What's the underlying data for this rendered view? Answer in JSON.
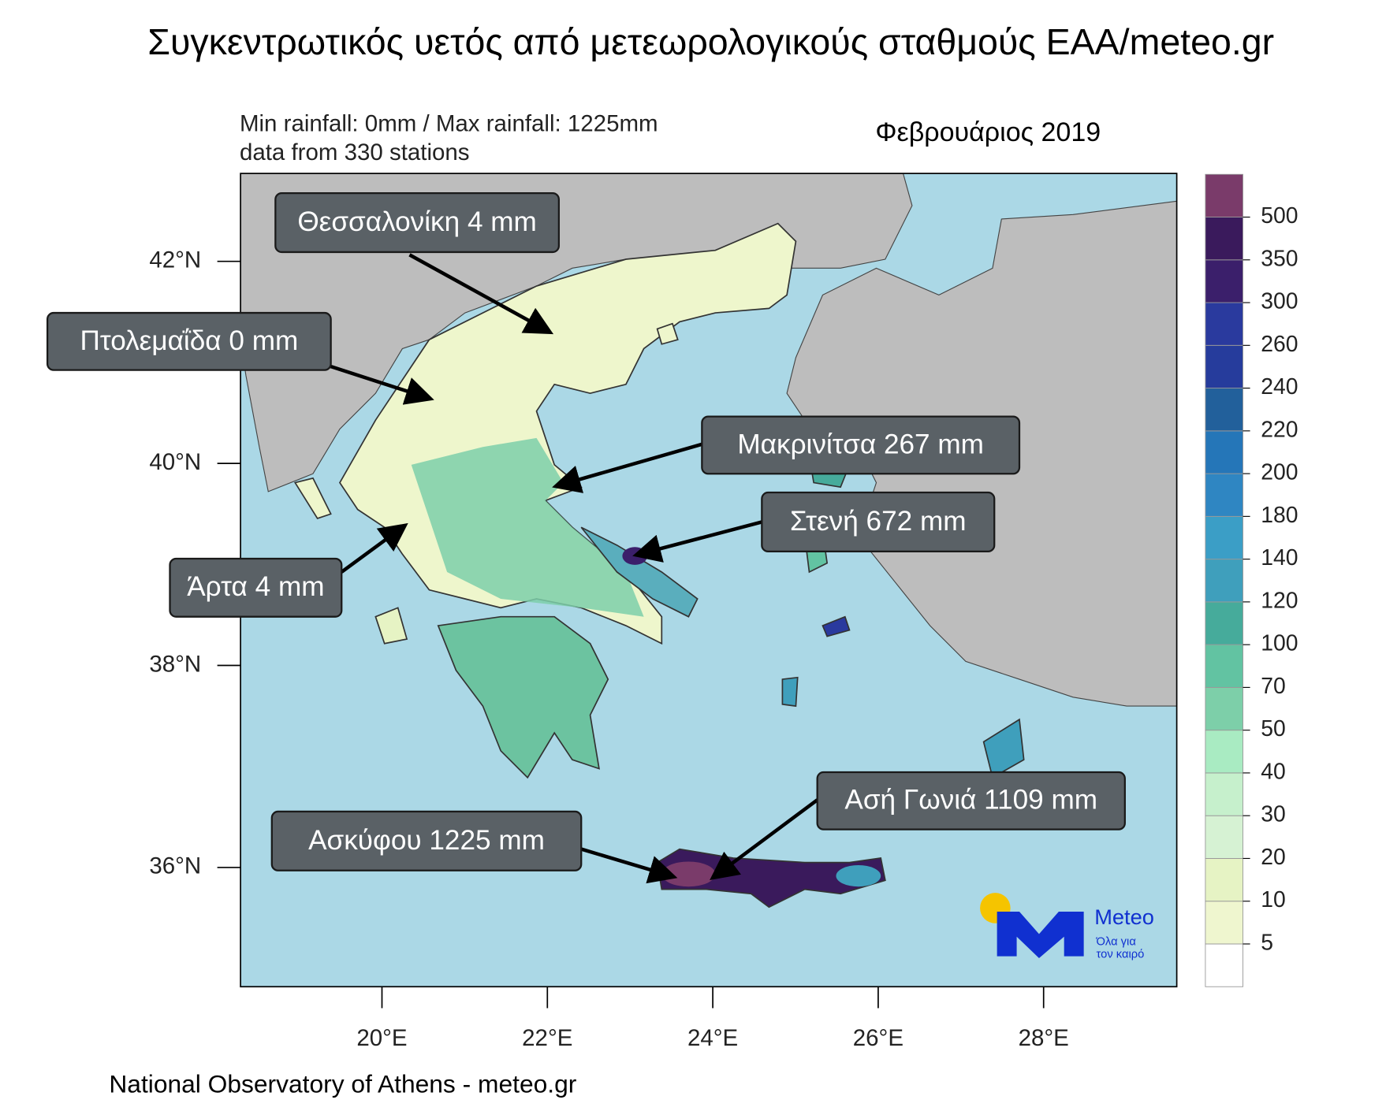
{
  "title": "Συγκεντρωτικός υετός από μετεωρολογικούς σταθμούς ΕΑΑ/meteo.gr",
  "map": {
    "info": [
      "Min rainfall: 0mm / Max rainfall: 1225mm",
      "data from 330 stations"
    ],
    "period": "Φεβρουάριος 2019",
    "xlim": [
      18.29,
      29.61
    ],
    "ylim": [
      34.82,
      42.87
    ],
    "xticks": [
      {
        "value": 20,
        "label": "20°E"
      },
      {
        "value": 22,
        "label": "22°E"
      },
      {
        "value": 24,
        "label": "24°E"
      },
      {
        "value": 26,
        "label": "26°E"
      },
      {
        "value": 28,
        "label": "28°E"
      }
    ],
    "yticks": [
      {
        "value": 36,
        "label": "36°N"
      },
      {
        "value": 38,
        "label": "38°N"
      },
      {
        "value": 40,
        "label": "40°N"
      },
      {
        "value": 42,
        "label": "42°N"
      }
    ],
    "annotations": [
      "Θεσσαλονίκη 4 mm",
      "Πτολεμαΐδα 0 mm",
      "Μακρινίτσα 267 mm",
      "Στενή 672 mm",
      "Άρτα 4 mm",
      "Ασή Γωνιά 1109 mm",
      "Ασκύφου 1225 mm"
    ],
    "colorbar": {
      "levels": [
        5,
        10,
        20,
        30,
        40,
        50,
        70,
        100,
        120,
        140,
        180,
        200,
        220,
        240,
        260,
        300,
        350,
        500
      ],
      "colors": [
        "#ffffff",
        "#eff6cf",
        "#e6f3c4",
        "#d6f2d3",
        "#c6f0cc",
        "#a9ebc2",
        "#7dcfa9",
        "#62c3a2",
        "#46ab9b",
        "#3f9fbc",
        "#3b9ec6",
        "#2f86c2",
        "#2576b8",
        "#22609b",
        "#263c9c",
        "#2a3a9e",
        "#3b1f6b",
        "#3a1a5c",
        "#7a3b6a"
      ]
    }
  },
  "logo": {
    "name": "Meteo",
    "tagline": [
      "Όλα για",
      "τον καιρό"
    ]
  },
  "footer": "National Observatory of Athens - meteo.gr"
}
